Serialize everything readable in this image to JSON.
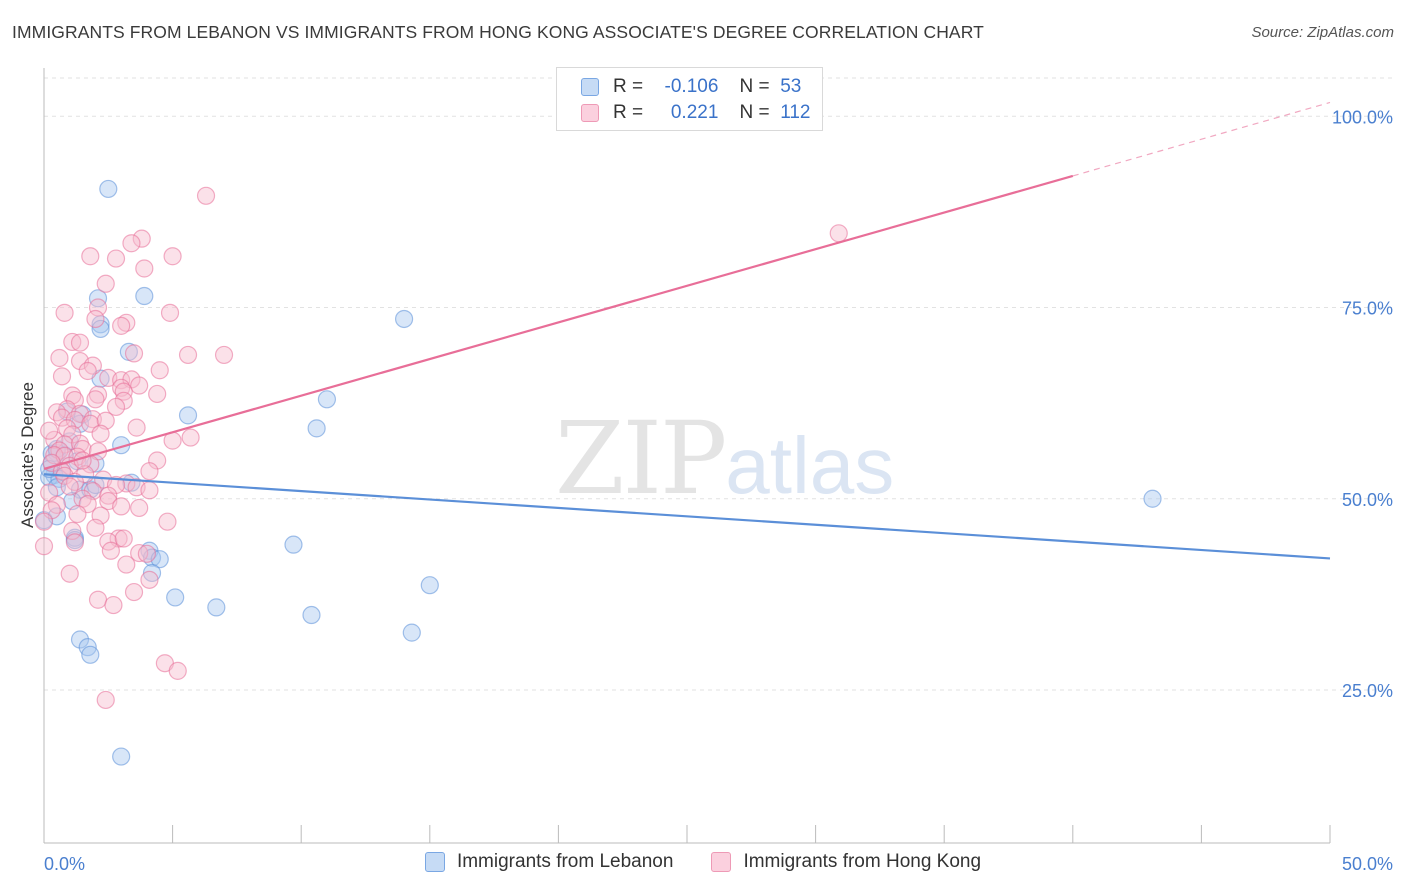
{
  "title": "IMMIGRANTS FROM LEBANON VS IMMIGRANTS FROM HONG KONG ASSOCIATE'S DEGREE CORRELATION CHART",
  "source": "Source: ZipAtlas.com",
  "watermark": {
    "zip": "ZIP",
    "atlas": "atlas"
  },
  "legend": {
    "r_label": "R =",
    "n_label": "N =",
    "rows": [
      {
        "r": "-0.106",
        "n": "53",
        "color": "#9fc3ee"
      },
      {
        "r": "0.221",
        "n": "112",
        "color": "#f5b3c8"
      }
    ]
  },
  "chart_data": {
    "type": "scatter",
    "xlabel": "",
    "ylabel": "Associate's Degree",
    "xlim": [
      0,
      50
    ],
    "ylim": [
      5,
      105
    ],
    "x_ticks": [
      "0.0%",
      "50.0%"
    ],
    "y_ticks": [
      {
        "value": 25,
        "label": "25.0%"
      },
      {
        "value": 50,
        "label": "50.0%"
      },
      {
        "value": 75,
        "label": "75.0%"
      },
      {
        "value": 100,
        "label": "100.0%"
      }
    ],
    "grid": true,
    "legend_position": "top-center",
    "series": [
      {
        "name": "Immigrants from Lebanon",
        "color": "#5b8fd8",
        "fill": "#a8c8ef",
        "trend": {
          "x0": 0,
          "y0": 53.2,
          "x1": 50,
          "y1": 42.2
        },
        "points": [
          [
            2.5,
            90.5
          ],
          [
            3.9,
            76.5
          ],
          [
            2.1,
            76.2
          ],
          [
            2.2,
            72.8
          ],
          [
            2.2,
            72.2
          ],
          [
            14.0,
            73.5
          ],
          [
            3.3,
            69.2
          ],
          [
            2.2,
            65.7
          ],
          [
            0.9,
            61.4
          ],
          [
            1.5,
            61.0
          ],
          [
            1.4,
            59.8
          ],
          [
            5.6,
            60.9
          ],
          [
            10.6,
            59.2
          ],
          [
            3.0,
            57.0
          ],
          [
            0.5,
            56.0
          ],
          [
            0.3,
            55.9
          ],
          [
            0.8,
            55.7
          ],
          [
            0.3,
            54.6
          ],
          [
            1.3,
            54.9
          ],
          [
            2.0,
            54.6
          ],
          [
            0.7,
            53.5
          ],
          [
            0.4,
            53.1
          ],
          [
            0.2,
            52.8
          ],
          [
            0.6,
            52.6
          ],
          [
            3.4,
            52.1
          ],
          [
            0.5,
            51.5
          ],
          [
            1.4,
            51.2
          ],
          [
            0.0,
            47.2
          ],
          [
            0.5,
            47.7
          ],
          [
            1.1,
            49.7
          ],
          [
            1.8,
            51.2
          ],
          [
            1.2,
            44.9
          ],
          [
            1.2,
            44.6
          ],
          [
            4.1,
            43.2
          ],
          [
            4.2,
            42.3
          ],
          [
            4.5,
            42.1
          ],
          [
            4.2,
            40.3
          ],
          [
            9.7,
            44.0
          ],
          [
            15.0,
            38.7
          ],
          [
            5.1,
            37.1
          ],
          [
            6.7,
            35.8
          ],
          [
            10.4,
            34.8
          ],
          [
            14.3,
            32.5
          ],
          [
            1.4,
            31.6
          ],
          [
            1.7,
            30.6
          ],
          [
            1.8,
            29.6
          ],
          [
            3.0,
            16.3
          ],
          [
            43.1,
            50.0
          ],
          [
            0.5,
            56.5
          ],
          [
            1.0,
            57.5
          ],
          [
            0.2,
            53.9
          ],
          [
            2.0,
            51.8
          ],
          [
            11.0,
            63.0
          ]
        ]
      },
      {
        "name": "Immigrants from Hong Kong",
        "color": "#e86e98",
        "fill": "#f7bccf",
        "trend": {
          "x0": 0,
          "y0": 53.9,
          "x1": 40,
          "y1": 92.2
        },
        "trend_dashed": {
          "x0": 40,
          "y0": 92.2,
          "x1": 50,
          "y1": 101.8
        },
        "points": [
          [
            6.3,
            89.6
          ],
          [
            30.9,
            84.7
          ],
          [
            3.8,
            84.0
          ],
          [
            3.4,
            83.4
          ],
          [
            1.8,
            81.7
          ],
          [
            2.8,
            81.4
          ],
          [
            5.0,
            81.7
          ],
          [
            3.9,
            80.1
          ],
          [
            2.4,
            78.1
          ],
          [
            2.1,
            75.0
          ],
          [
            0.8,
            74.3
          ],
          [
            4.9,
            74.3
          ],
          [
            3.2,
            73.0
          ],
          [
            2.0,
            73.5
          ],
          [
            3.0,
            72.6
          ],
          [
            1.1,
            70.5
          ],
          [
            1.4,
            70.4
          ],
          [
            5.6,
            68.8
          ],
          [
            7.0,
            68.8
          ],
          [
            0.6,
            68.4
          ],
          [
            1.4,
            68.0
          ],
          [
            1.9,
            67.4
          ],
          [
            1.7,
            66.7
          ],
          [
            4.5,
            66.8
          ],
          [
            2.5,
            65.8
          ],
          [
            3.0,
            65.5
          ],
          [
            3.4,
            65.6
          ],
          [
            3.7,
            64.8
          ],
          [
            3.0,
            64.5
          ],
          [
            3.1,
            64.0
          ],
          [
            2.1,
            63.6
          ],
          [
            1.1,
            63.5
          ],
          [
            4.4,
            63.7
          ],
          [
            1.2,
            62.9
          ],
          [
            3.1,
            62.8
          ],
          [
            2.8,
            62.0
          ],
          [
            0.9,
            61.7
          ],
          [
            0.5,
            61.3
          ],
          [
            1.4,
            61.1
          ],
          [
            1.9,
            60.4
          ],
          [
            0.7,
            60.6
          ],
          [
            1.2,
            60.3
          ],
          [
            1.8,
            59.8
          ],
          [
            3.6,
            59.3
          ],
          [
            2.4,
            60.2
          ],
          [
            0.9,
            59.2
          ],
          [
            1.1,
            58.4
          ],
          [
            2.2,
            58.5
          ],
          [
            5.0,
            57.6
          ],
          [
            0.4,
            57.7
          ],
          [
            0.8,
            57.1
          ],
          [
            1.4,
            57.2
          ],
          [
            0.6,
            56.3
          ],
          [
            1.5,
            56.5
          ],
          [
            2.1,
            56.2
          ],
          [
            0.4,
            55.7
          ],
          [
            0.8,
            55.6
          ],
          [
            1.3,
            55.5
          ],
          [
            4.4,
            55.0
          ],
          [
            0.3,
            54.7
          ],
          [
            1.0,
            54.3
          ],
          [
            1.8,
            54.5
          ],
          [
            0.7,
            53.6
          ],
          [
            4.1,
            53.6
          ],
          [
            1.6,
            53.2
          ],
          [
            0.8,
            53.0
          ],
          [
            2.3,
            52.5
          ],
          [
            1.2,
            52.2
          ],
          [
            3.2,
            52.0
          ],
          [
            2.8,
            51.8
          ],
          [
            1.0,
            51.6
          ],
          [
            3.6,
            51.5
          ],
          [
            4.1,
            51.1
          ],
          [
            1.9,
            51.0
          ],
          [
            0.2,
            50.8
          ],
          [
            2.5,
            50.4
          ],
          [
            1.5,
            50.0
          ],
          [
            2.5,
            49.7
          ],
          [
            1.7,
            49.3
          ],
          [
            0.5,
            49.2
          ],
          [
            3.0,
            49.0
          ],
          [
            3.7,
            48.8
          ],
          [
            0.3,
            48.5
          ],
          [
            2.2,
            47.8
          ],
          [
            0.0,
            47.0
          ],
          [
            4.8,
            47.0
          ],
          [
            2.0,
            46.2
          ],
          [
            1.1,
            45.8
          ],
          [
            2.9,
            44.8
          ],
          [
            2.5,
            44.4
          ],
          [
            1.2,
            44.3
          ],
          [
            3.1,
            44.8
          ],
          [
            0.0,
            43.8
          ],
          [
            2.6,
            43.2
          ],
          [
            3.7,
            42.9
          ],
          [
            4.0,
            42.8
          ],
          [
            3.2,
            41.4
          ],
          [
            1.0,
            40.2
          ],
          [
            4.1,
            39.4
          ],
          [
            3.5,
            37.8
          ],
          [
            2.1,
            36.8
          ],
          [
            2.7,
            36.1
          ],
          [
            4.7,
            28.5
          ],
          [
            5.2,
            27.5
          ],
          [
            2.4,
            23.7
          ],
          [
            0.2,
            58.9
          ],
          [
            1.5,
            55.0
          ],
          [
            2.0,
            63.0
          ],
          [
            0.7,
            66.0
          ],
          [
            3.5,
            69.0
          ],
          [
            1.3,
            48.0
          ],
          [
            5.7,
            58.0
          ]
        ]
      }
    ]
  }
}
